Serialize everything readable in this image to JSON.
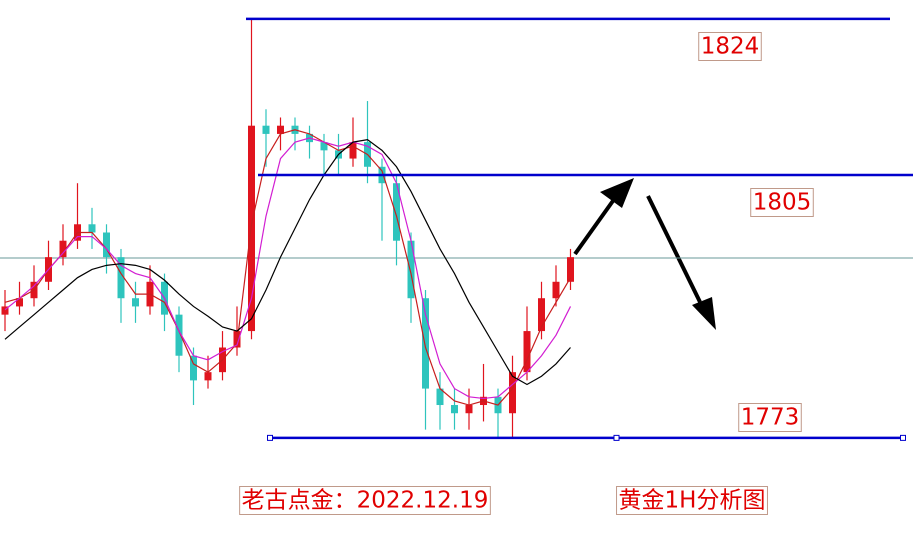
{
  "chart_data": {
    "type": "candlestick",
    "up_color": "#e0141e",
    "down_color": "#2ec4bd",
    "ylim": [
      1761.3,
      1826.3
    ],
    "open": [
      1788,
      1789,
      1790,
      1792,
      1795,
      1797,
      1799,
      1798,
      1795,
      1790,
      1789,
      1792,
      1788,
      1783,
      1780,
      1781,
      1784,
      1786,
      1811,
      1810,
      1811,
      1810,
      1809,
      1808,
      1807,
      1809,
      1806,
      1804,
      1797,
      1790,
      1779,
      1777,
      1776,
      1777,
      1778,
      1776,
      1781,
      1786,
      1790,
      1792
    ],
    "high": [
      1791,
      1792,
      1794,
      1797,
      1799,
      1804,
      1801,
      1799,
      1796,
      1792,
      1794,
      1793,
      1789,
      1784,
      1783,
      1786,
      1789,
      1824,
      1813,
      1812,
      1812,
      1811,
      1810,
      1810,
      1812,
      1814,
      1807,
      1805,
      1798,
      1791,
      1781,
      1779,
      1779,
      1782,
      1779,
      1783,
      1789,
      1792,
      1794,
      1796
    ],
    "low": [
      1786,
      1788,
      1789,
      1791,
      1794,
      1796,
      1796,
      1793,
      1787,
      1787,
      1788,
      1786,
      1781,
      1777,
      1779,
      1780,
      1783,
      1785,
      1806,
      1808,
      1808,
      1807,
      1805,
      1805,
      1806,
      1804,
      1797,
      1794,
      1787,
      1774,
      1774,
      1774,
      1774,
      1775,
      1773,
      1773,
      1780,
      1785,
      1789,
      1791
    ],
    "close": [
      1789,
      1790,
      1792,
      1795,
      1797,
      1799,
      1798,
      1795,
      1790,
      1789,
      1792,
      1788,
      1783,
      1780,
      1781,
      1784,
      1786,
      1811,
      1810,
      1811,
      1810,
      1809,
      1808,
      1807,
      1809,
      1806,
      1804,
      1797,
      1790,
      1779,
      1777,
      1776,
      1777,
      1778,
      1776,
      1781,
      1786,
      1790,
      1792,
      1795
    ],
    "series": [
      {
        "color": "#c81e1e",
        "values": [
          1789.5,
          1790,
          1791,
          1793.5,
          1795.5,
          1798,
          1798,
          1796,
          1793,
          1790.5,
          1790.5,
          1789.5,
          1786,
          1782,
          1781,
          1782.5,
          1784.5,
          1799,
          1807,
          1810,
          1810.5,
          1810,
          1809,
          1808,
          1808.5,
          1807.5,
          1805.5,
          1800,
          1793,
          1784,
          1779,
          1777.5,
          1777,
          1777.5,
          1777,
          1779,
          1782.5,
          1786.5,
          1789.5,
          1792.5
        ]
      },
      {
        "color": "#d21ed2",
        "values": [
          1788.6,
          1790,
          1791.5,
          1793.5,
          1795.5,
          1797.5,
          1797.5,
          1796,
          1794,
          1793,
          1792.5,
          1790,
          1786,
          1783,
          1782.5,
          1783.5,
          1784.3,
          1790,
          1800,
          1807,
          1809,
          1809.5,
          1809,
          1808.5,
          1809,
          1808.5,
          1807.5,
          1804,
          1797,
          1788,
          1782,
          1779,
          1778,
          1777.8,
          1778,
          1779.5,
          1781,
          1783,
          1785.5,
          1789
        ]
      },
      {
        "color": "#000000",
        "values": [
          1785,
          1786.5,
          1788,
          1789.5,
          1791,
          1792.5,
          1793.5,
          1794,
          1794.2,
          1794,
          1793.5,
          1792.2,
          1790.5,
          1789,
          1787.8,
          1786.5,
          1786,
          1787.5,
          1791,
          1795,
          1798.5,
          1802,
          1805,
          1807.5,
          1809,
          1809.3,
          1808,
          1806,
          1803,
          1799.5,
          1796,
          1793,
          1789.5,
          1786.5,
          1783.5,
          1780.5,
          1779.5,
          1780.5,
          1782,
          1784
        ]
      }
    ],
    "reference_line": 1794.9,
    "levels": [
      1824,
      1805,
      1773
    ],
    "level_color": "#0000cc",
    "captions": [
      "老古点金：2022.12.19",
      "黄金1H分析图"
    ]
  }
}
